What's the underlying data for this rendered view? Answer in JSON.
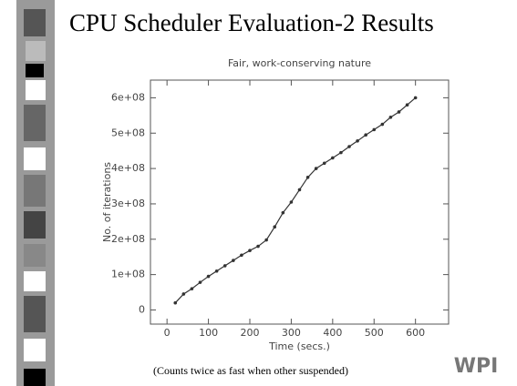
{
  "slide": {
    "title": "CPU Scheduler Evaluation-2 Results",
    "caption": "(Counts twice as fast when other suspended)",
    "logo": "WPI"
  },
  "chart_data": {
    "type": "line",
    "title": "Fair, work-conserving nature",
    "xlabel": "Time (secs.)",
    "ylabel": "No. of iterations",
    "x": [
      20,
      40,
      60,
      80,
      100,
      120,
      140,
      160,
      180,
      200,
      220,
      240,
      260,
      280,
      300,
      320,
      340,
      360,
      380,
      400,
      420,
      440,
      460,
      480,
      500,
      520,
      540,
      560,
      580,
      600
    ],
    "series": [
      {
        "name": "iterations",
        "color": "#333333",
        "values": [
          20000000,
          45000000,
          60000000,
          78000000,
          95000000,
          110000000,
          125000000,
          140000000,
          155000000,
          168000000,
          180000000,
          198000000,
          235000000,
          275000000,
          305000000,
          340000000,
          375000000,
          400000000,
          415000000,
          430000000,
          445000000,
          462000000,
          478000000,
          495000000,
          510000000,
          525000000,
          545000000,
          560000000,
          580000000,
          600000000
        ]
      }
    ],
    "xlim": [
      -40,
      680
    ],
    "xticks": [
      0,
      100,
      200,
      300,
      400,
      500,
      600
    ],
    "ylim": [
      -40000000,
      650000000
    ],
    "yticks": [
      0,
      {
        "value": 100000000,
        "label": "1e+08"
      },
      {
        "value": 200000000,
        "label": "2e+08"
      },
      {
        "value": 300000000,
        "label": "3e+08"
      },
      {
        "value": 400000000,
        "label": "4e+08"
      },
      {
        "value": 500000000,
        "label": "5e+08"
      },
      {
        "value": 600000000,
        "label": "6e+08"
      }
    ]
  }
}
